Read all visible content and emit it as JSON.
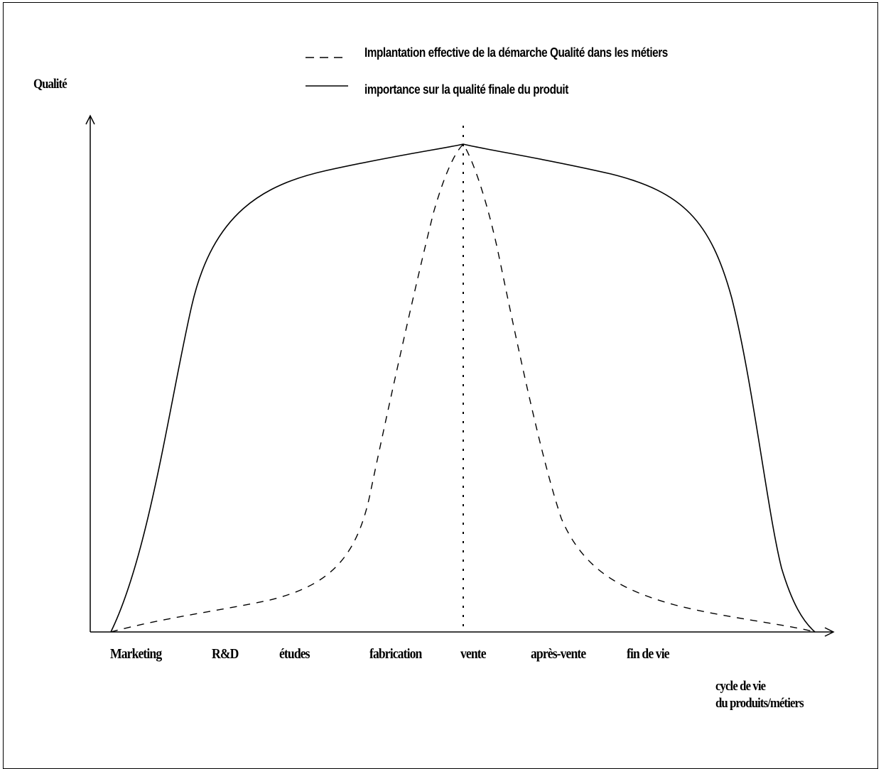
{
  "legend": {
    "dashed_label": "Implantation effective de la démarche Qualité dans les métiers",
    "solid_label": "importance sur la qualité finale du produit"
  },
  "axes": {
    "y_label": "Qualité",
    "x_label_line1": "cycle de vie",
    "x_label_line2": "du produits/métiers"
  },
  "chart_data": {
    "type": "line",
    "categories": [
      "Marketing",
      "R&D",
      "études",
      "fabrication",
      "vente",
      "après-vente",
      "fin de vie"
    ],
    "peak_category": "vente",
    "series": [
      {
        "name": "Implantation effective de la démarche Qualité dans les métiers",
        "style": "dashed",
        "shape": "narrow peak centered at vente, near zero at both ends"
      },
      {
        "name": "importance sur la qualité finale du produit",
        "style": "solid",
        "shape": "broad plateau with maximum at vente, zero at both ends"
      }
    ],
    "marker": {
      "type": "vertical-dotted-line",
      "at": "vente"
    },
    "colors": {
      "line": "#000000",
      "background": "#ffffff"
    }
  }
}
